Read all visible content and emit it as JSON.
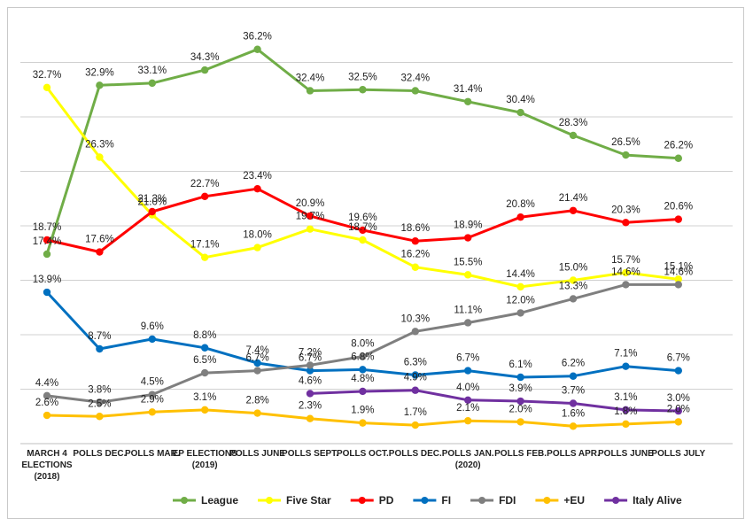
{
  "chart_data": {
    "type": "line",
    "categories": [
      [
        "MARCH 4",
        "ELECTIONS",
        "(2018)"
      ],
      [
        "POLLS DEC."
      ],
      [
        "POLLS MAR."
      ],
      [
        "EP ELECTIONS",
        "(2019)"
      ],
      [
        "POLLS JUNE"
      ],
      [
        "POLLS SEPT."
      ],
      [
        "POLLS OCT."
      ],
      [
        "POLLS DEC."
      ],
      [
        "POLLS JAN.",
        "(2020)"
      ],
      [
        "POLLS FEB."
      ],
      [
        "POLLS APR."
      ],
      [
        "POLLS JUNE"
      ],
      [
        "POLLS JULY"
      ]
    ],
    "ylim": [
      0,
      40
    ],
    "grid": true,
    "legend_position": "bottom",
    "series": [
      {
        "name": "League",
        "color": "#70ad47",
        "values": [
          17.4,
          32.9,
          33.1,
          34.3,
          36.2,
          32.4,
          32.5,
          32.4,
          31.4,
          30.4,
          28.3,
          26.5,
          26.2
        ]
      },
      {
        "name": "Five Star",
        "color": "#ffff00",
        "values": [
          32.7,
          26.3,
          21.0,
          17.1,
          18.0,
          19.7,
          18.7,
          16.2,
          15.5,
          14.4,
          15.0,
          15.7,
          15.1
        ]
      },
      {
        "name": "PD",
        "color": "#ff0000",
        "values": [
          18.7,
          17.6,
          21.3,
          22.7,
          23.4,
          20.9,
          19.6,
          18.6,
          18.9,
          20.8,
          21.4,
          20.3,
          20.6
        ]
      },
      {
        "name": "FI",
        "color": "#0070c0",
        "values": [
          13.9,
          8.7,
          9.6,
          8.8,
          7.4,
          6.7,
          6.8,
          6.3,
          6.7,
          6.1,
          6.2,
          7.1,
          6.7
        ]
      },
      {
        "name": "FDI",
        "color": "#7f7f7f",
        "values": [
          4.4,
          3.8,
          4.5,
          6.5,
          6.7,
          7.2,
          8.0,
          10.3,
          11.1,
          12.0,
          13.3,
          14.6,
          14.6
        ]
      },
      {
        "name": "+EU",
        "color": "#ffc000",
        "values": [
          2.6,
          2.5,
          2.9,
          3.1,
          2.8,
          2.3,
          1.9,
          1.7,
          2.1,
          2.0,
          1.6,
          1.8,
          2.0
        ]
      },
      {
        "name": "Italy Alive",
        "color": "#7030a0",
        "values": [
          null,
          null,
          null,
          null,
          null,
          4.6,
          4.8,
          4.9,
          4.0,
          3.9,
          3.7,
          3.1,
          3.0
        ]
      }
    ],
    "labels": [
      [
        "17.4%",
        "32.9%",
        "33.1%",
        "34.3%",
        "36.2%",
        "32.4%",
        "32.5%",
        "32.4%",
        "31.4%",
        "30.4%",
        "28.3%",
        "26.5%",
        "26.2%"
      ],
      [
        "32.7%",
        "26.3%",
        "21.0%",
        "17.1%",
        "18.0%",
        "19.7%",
        "18.7%",
        "16.2%",
        "15.5%",
        "14.4%",
        "15.0%",
        "15.7%",
        "15.1%"
      ],
      [
        "18.7%",
        "17.6%",
        "21.3%",
        "22.7%",
        "23.4%",
        "20.9%",
        "19.6%",
        "18.6%",
        "18.9%",
        "20.8%",
        "21.4%",
        "20.3%",
        "20.6%"
      ],
      [
        "13.9%",
        "8.7%",
        "9.6%",
        "8.8%",
        "7.4%",
        "6.7%",
        "6.8%",
        "6.3%",
        "6.7%",
        "6.1%",
        "6.2%",
        "7.1%",
        "6.7%"
      ],
      [
        "4.4%",
        "3.8%",
        "4.5%",
        "6.5%",
        "6.7%",
        "7.2%",
        "8.0%",
        "10.3%",
        "11.1%",
        "12.0%",
        "13.3%",
        "14.6%",
        "14.6%"
      ],
      [
        "2.6%",
        "2.5%",
        "2.9%",
        "3.1%",
        "2.8%",
        "2.3%",
        "1.9%",
        "1.7%",
        "2.1%",
        "2.0%",
        "1.6%",
        "1.8%",
        "2.0%"
      ],
      [
        "",
        "",
        "",
        "",
        "",
        "4.6%",
        "4.8%",
        "4.9%",
        "4.0%",
        "3.9%",
        "3.7%",
        "3.1%",
        "3.0%"
      ]
    ]
  }
}
